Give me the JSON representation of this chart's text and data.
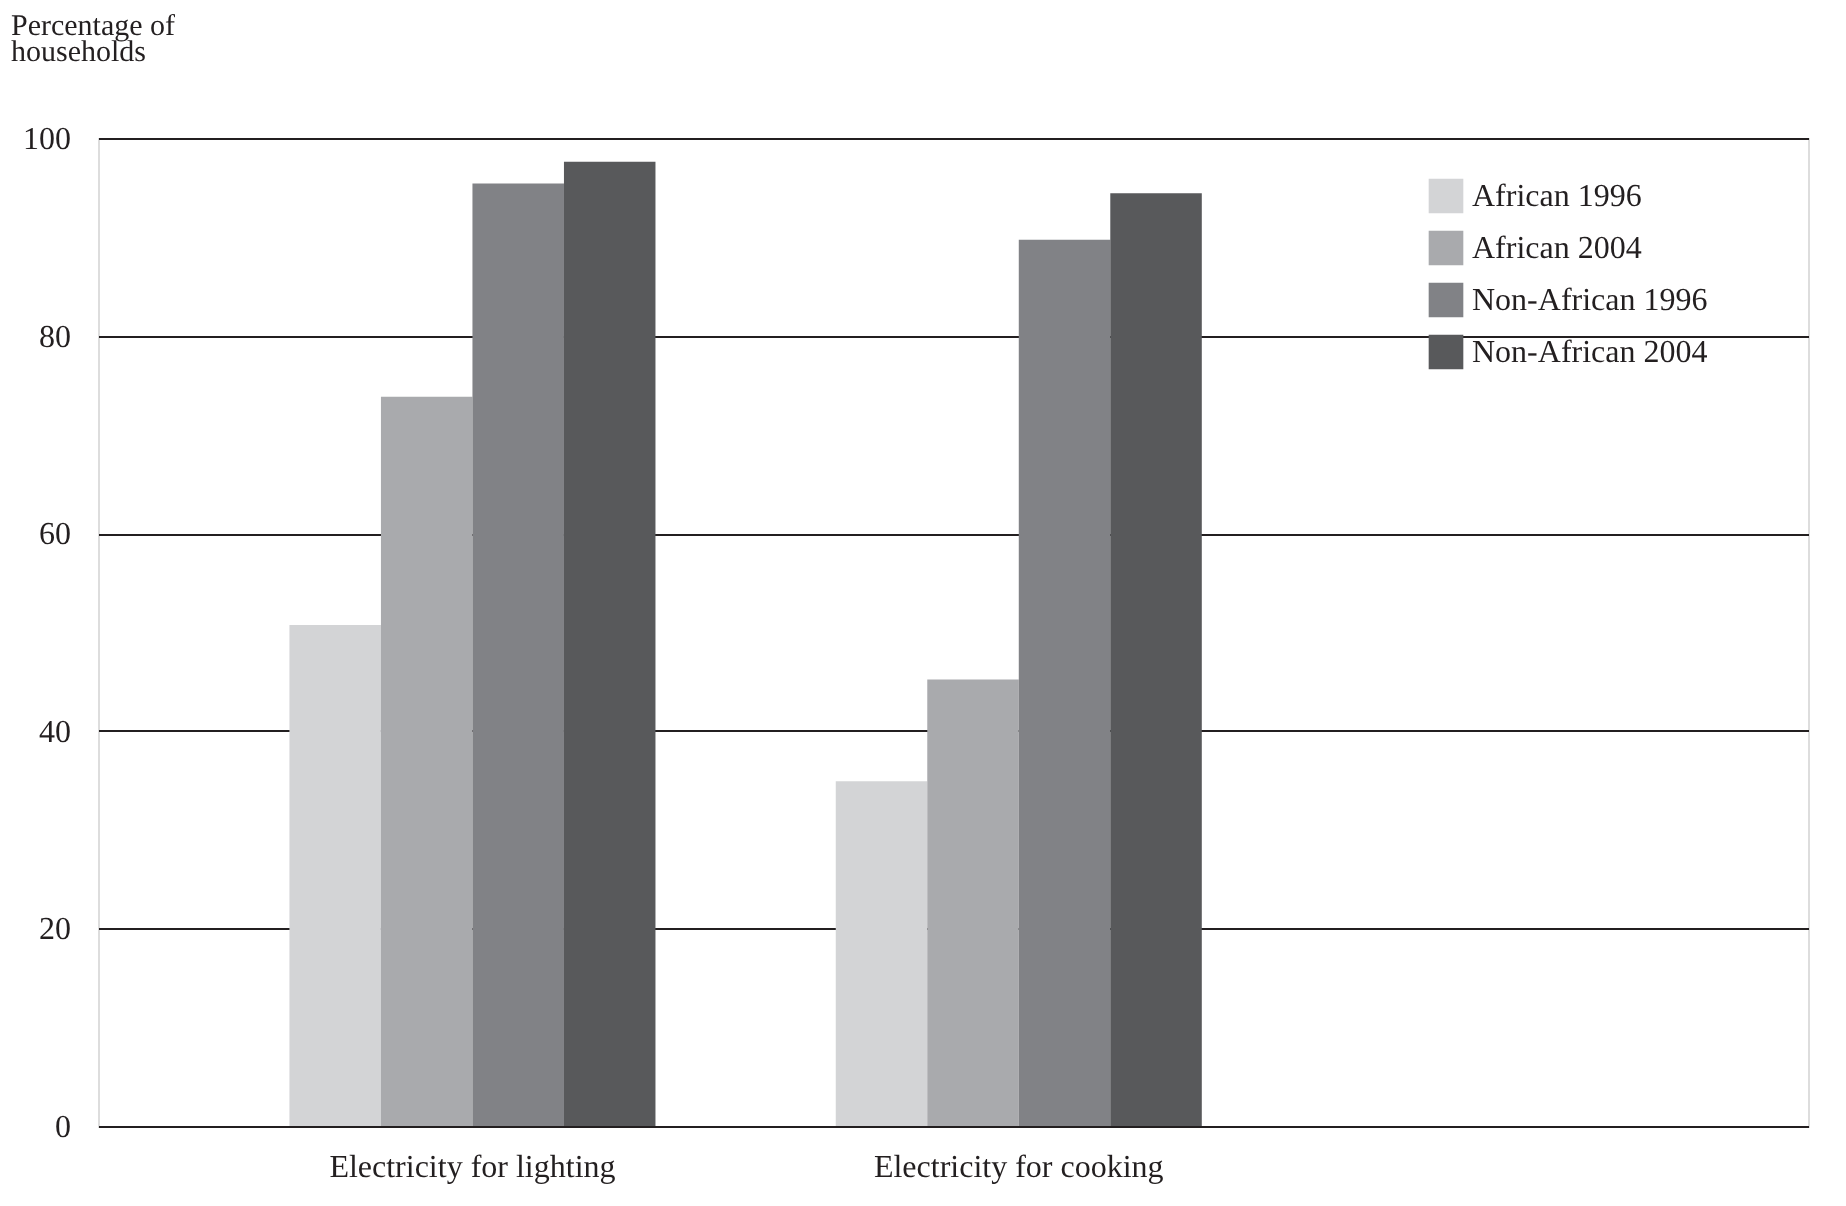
{
  "chart_data": {
    "type": "bar",
    "ylabel": "Percentage of households",
    "categories": [
      "Electricity for lighting",
      "Electricity for cooking"
    ],
    "series": [
      {
        "name": "African 1996",
        "color": "#d3d4d6",
        "values": [
          50.7,
          34.9
        ]
      },
      {
        "name": "African 2004",
        "color": "#a9aaad",
        "values": [
          73.8,
          45.2
        ]
      },
      {
        "name": "Non-African 1996",
        "color": "#818286",
        "values": [
          95.4,
          89.7
        ]
      },
      {
        "name": "Non-African 2004",
        "color": "#58595b",
        "values": [
          97.6,
          94.4
        ]
      }
    ],
    "ylim": [
      0,
      100
    ],
    "yticks": [
      0,
      20,
      40,
      60,
      80,
      100
    ],
    "grid": "y",
    "legend": "top right"
  }
}
